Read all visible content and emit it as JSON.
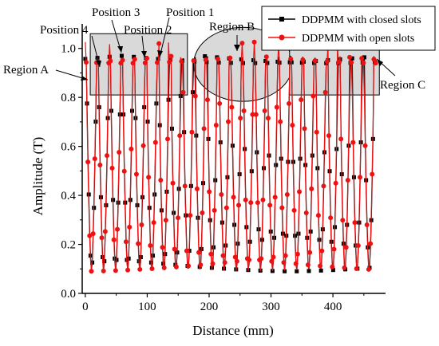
{
  "chart_data": {
    "type": "line",
    "title": "",
    "xlabel": "Distance (mm)",
    "ylabel": "Amplitude (T)",
    "xlim": [
      -5,
      485
    ],
    "ylim": [
      0.0,
      1.1
    ],
    "xticks": [
      "0",
      "100",
      "200",
      "300",
      "400"
    ],
    "yticks": [
      "0.0",
      "0.2",
      "0.4",
      "0.6",
      "0.8",
      "1.0"
    ],
    "xtick_values": [
      0,
      100,
      200,
      300,
      400
    ],
    "ytick_values": [
      0.0,
      0.2,
      0.4,
      0.6,
      0.8,
      1.0
    ],
    "grid": false,
    "legend_position": "top-right",
    "series": [
      {
        "name": "DDPMM with closed slots",
        "color": "#000000",
        "marker": "square",
        "slot_period_mm": 19.5,
        "x_range": [
          0,
          470
        ],
        "peak_value": 0.97,
        "min_value": 0.09
      },
      {
        "name": "DDPMM with open slots",
        "color": "#ee1111",
        "marker": "circle",
        "slot_period_mm": 19.5,
        "x_range": [
          0,
          470
        ],
        "peak_value": 0.97,
        "open_slot_peak_value": 1.05,
        "min_value": 0.09
      }
    ],
    "regions": [
      {
        "label": "Region A",
        "shape": "rectangle",
        "x_range": [
          8,
          165
        ],
        "y_range": [
          0.81,
          1.06
        ]
      },
      {
        "label": "Region B",
        "shape": "ellipse",
        "x_range": [
          175,
          335
        ],
        "y_range": [
          0.81,
          1.06
        ]
      },
      {
        "label": "Region C",
        "shape": "rectangle",
        "x_range": [
          330,
          475
        ],
        "y_range": [
          0.81,
          1.06
        ]
      }
    ],
    "annotations": [
      {
        "label": "Position 4"
      },
      {
        "label": "Position 3"
      },
      {
        "label": "Position 2"
      },
      {
        "label": "Position 1"
      }
    ]
  },
  "colors": {
    "closed_slots": "#000000",
    "open_slots": "#ee1111",
    "region_fill": "#d9d9d9"
  }
}
